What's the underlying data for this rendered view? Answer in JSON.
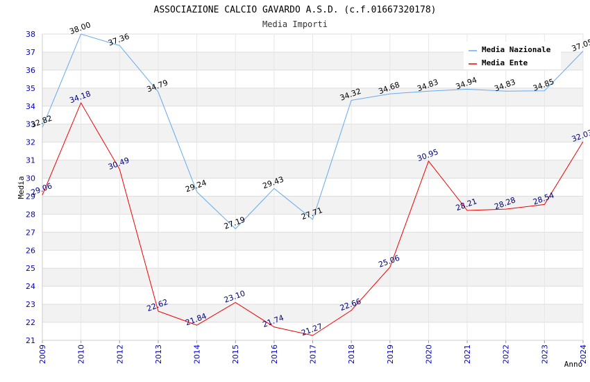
{
  "chart_data": {
    "type": "line",
    "title": "ASSOCIAZIONE CALCIO GAVARDO A.S.D. (c.f.01667320178)",
    "subtitle": "Media Importi",
    "xlabel": "Anno",
    "ylabel": "Media",
    "x": [
      "2009",
      "2010",
      "2012",
      "2013",
      "2014",
      "2015",
      "2016",
      "2017",
      "2018",
      "2019",
      "2020",
      "2021",
      "2022",
      "2023",
      "2024"
    ],
    "ylim": [
      21,
      38
    ],
    "yticks": [
      21,
      22,
      23,
      24,
      25,
      26,
      27,
      28,
      29,
      30,
      31,
      32,
      33,
      34,
      35,
      36,
      37,
      38
    ],
    "grid": true,
    "legend_position": "top-right",
    "series": [
      {
        "name": "Media Nazionale",
        "color": "#66aaee",
        "label_color": "#000000",
        "values": [
          32.82,
          38.0,
          37.36,
          34.79,
          29.24,
          27.19,
          29.43,
          27.71,
          34.32,
          34.68,
          34.83,
          34.94,
          34.83,
          34.85,
          37.05
        ],
        "labels": [
          "32.82",
          "38.00",
          "37.36",
          "34.79",
          "29.24",
          "27.19",
          "29.43",
          "27.71",
          "34.32",
          "34.68",
          "34.83",
          "34.94",
          "34.83",
          "34.85",
          "37.05"
        ]
      },
      {
        "name": "Media Ente",
        "color": "#ee0000",
        "label_color": "#000080",
        "values": [
          29.06,
          34.18,
          30.49,
          22.62,
          21.84,
          23.1,
          21.74,
          21.27,
          22.66,
          25.06,
          30.95,
          28.21,
          28.28,
          28.54,
          32.03
        ],
        "labels": [
          "29.06",
          "34.18",
          "30.49",
          "22.62",
          "21.84",
          "23.10",
          "21.74",
          "21.27",
          "22.66",
          "25.06",
          "30.95",
          "28.21",
          "28.28",
          "28.54",
          "32.03"
        ]
      }
    ]
  }
}
